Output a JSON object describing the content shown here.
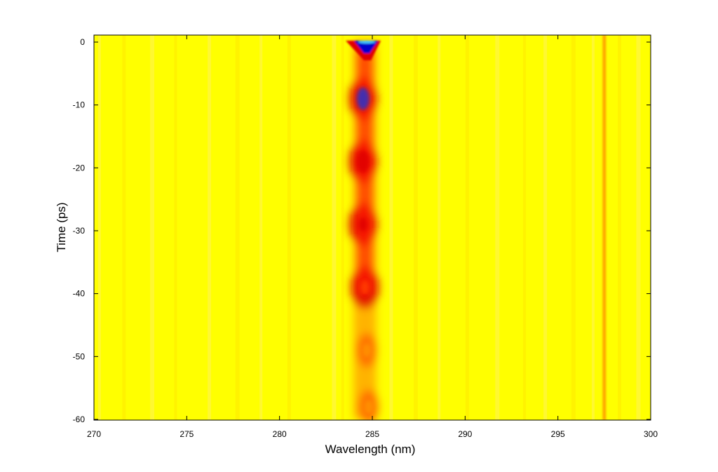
{
  "chart_data": {
    "type": "heatmap",
    "title": "",
    "xlabel": "Wavelength (nm)",
    "ylabel": "Time (ps)",
    "xlim": [
      270,
      300
    ],
    "ylim": [
      -60,
      1
    ],
    "xticks": [
      270,
      275,
      280,
      285,
      290,
      295,
      300
    ],
    "yticks": [
      0,
      -10,
      -20,
      -30,
      -40,
      -50,
      -60
    ],
    "xtick_labels": [
      "270",
      "275",
      "280",
      "285",
      "290",
      "295",
      "300"
    ],
    "ytick_labels": [
      "0",
      "-10",
      "-20",
      "-30",
      "-40",
      "-50",
      "-60"
    ],
    "grid": false,
    "colormap": "jet",
    "colors": {
      "background": "#ffff00",
      "low": "#0000aa",
      "mid": "#ff0000",
      "high": "#ffff00"
    },
    "features": [
      {
        "kind": "trace",
        "center_wavelength": 284.6,
        "time_start": 0.3,
        "time_end": -60
      },
      {
        "kind": "spot",
        "wavelength": 284.7,
        "time": 0,
        "intensity": "min"
      },
      {
        "kind": "spot",
        "wavelength": 284.5,
        "time": -9,
        "intensity": "low"
      },
      {
        "kind": "spot",
        "wavelength": 284.5,
        "time": -19,
        "intensity": "mid"
      },
      {
        "kind": "spot",
        "wavelength": 284.5,
        "time": -29,
        "intensity": "mid"
      },
      {
        "kind": "spot",
        "wavelength": 284.6,
        "time": -39,
        "intensity": "mid-high"
      },
      {
        "kind": "spot",
        "wavelength": 284.7,
        "time": -49,
        "intensity": "high"
      },
      {
        "kind": "spot",
        "wavelength": 284.8,
        "time": -58,
        "intensity": "high"
      },
      {
        "kind": "line",
        "wavelength": 297.5,
        "intensity": "high"
      }
    ]
  }
}
